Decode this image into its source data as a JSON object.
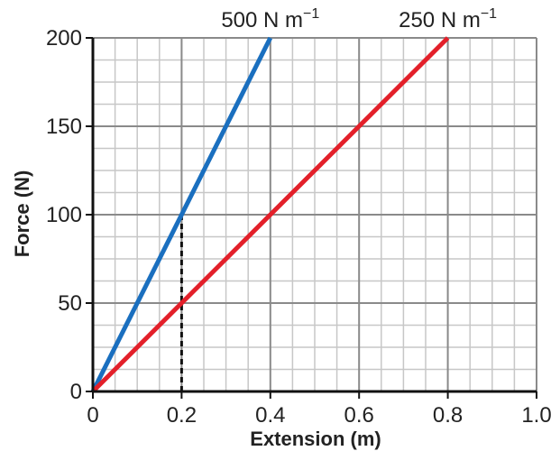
{
  "chart_data": {
    "type": "line",
    "xlabel": "Extension (m)",
    "ylabel": "Force (N)",
    "xlim": [
      0,
      1.0
    ],
    "ylim": [
      0,
      200
    ],
    "x_ticks": [
      0,
      0.2,
      0.4,
      0.6,
      0.8,
      1.0
    ],
    "x_tick_labels": [
      "0",
      "0.2",
      "0.4",
      "0.6",
      "0.8",
      "1.0"
    ],
    "y_ticks": [
      0,
      50,
      100,
      150,
      200
    ],
    "y_tick_labels": [
      "0",
      "50",
      "100",
      "150",
      "200"
    ],
    "grid": true,
    "series": [
      {
        "name": "500 N m−1",
        "label_main": "500 N m",
        "label_sup": "−1",
        "color": "#1a6fbf",
        "x": [
          0,
          0.4
        ],
        "y": [
          0,
          200
        ]
      },
      {
        "name": "250 N m−1",
        "label_main": "250 N m",
        "label_sup": "−1",
        "color": "#e3202a",
        "x": [
          0,
          0.8
        ],
        "y": [
          0,
          200
        ]
      }
    ],
    "guide_line": {
      "x": 0.2,
      "y_from": 0,
      "y_to": 100,
      "style": "dashed"
    }
  }
}
